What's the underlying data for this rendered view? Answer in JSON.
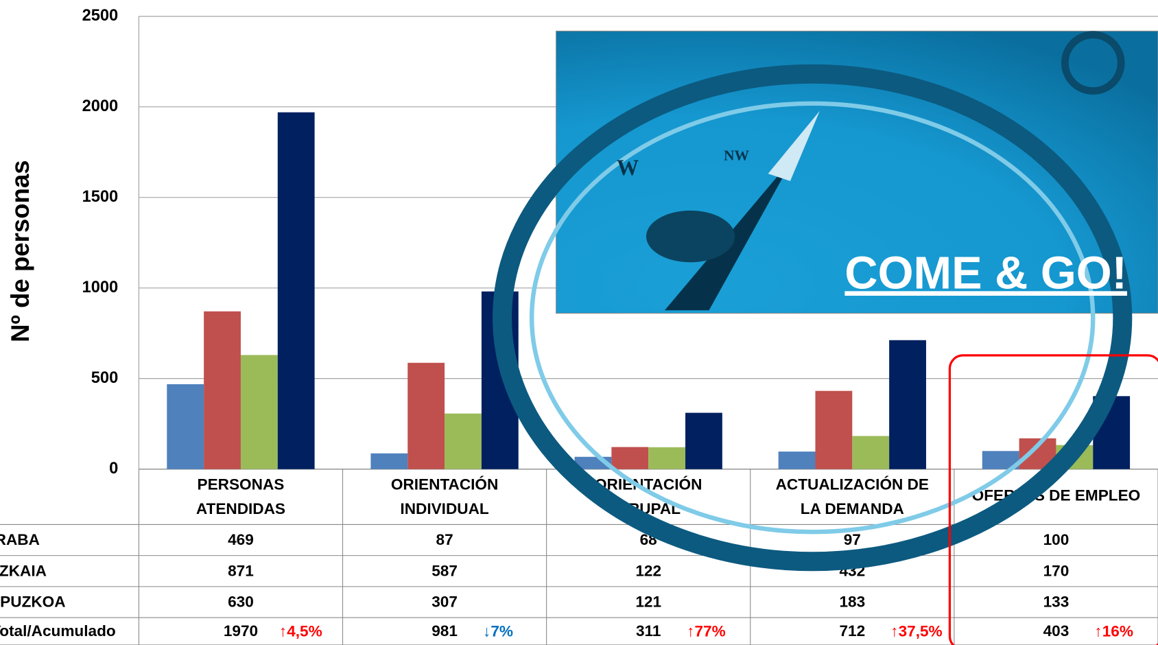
{
  "chart_data": {
    "type": "bar",
    "ylabel": "Nº de personas",
    "categories": [
      "PERSONAS\nATENDIDAS",
      "ORIENTACIÓN\nINDIVIDUAL",
      "ORIENTACIÓN\nGRUPAL",
      "ACTUALIZACIÓN DE\nLA DEMANDA",
      "OFERTAS DE EMPLEO"
    ],
    "series": [
      {
        "name": "ARABA",
        "color": "#4f81bd",
        "values": [
          469,
          87,
          68,
          97,
          100
        ]
      },
      {
        "name": "BIZKAIA",
        "color": "#c0504d",
        "values": [
          871,
          587,
          122,
          432,
          170
        ]
      },
      {
        "name": "GIPUZKOA",
        "color": "#9bbb59",
        "values": [
          630,
          307,
          121,
          183,
          133
        ]
      },
      {
        "name": "Total/Acumulado",
        "color": "#002060",
        "values": [
          1970,
          981,
          311,
          712,
          403
        ]
      }
    ],
    "changes": [
      {
        "label": "↑4,5%",
        "color": "#ff0000"
      },
      {
        "label": "↓7%",
        "color": "#0070c0"
      },
      {
        "label": "↑77%",
        "color": "#ff0000"
      },
      {
        "label": "↑37,5%",
        "color": "#ff0000"
      },
      {
        "label": "↑16%",
        "color": "#ff0000"
      }
    ],
    "image_caption": "COME & GO!",
    "ylim": [
      0,
      2500
    ],
    "yticks": [
      0,
      500,
      1000,
      1500,
      2000,
      2500
    ],
    "grid": true
  }
}
